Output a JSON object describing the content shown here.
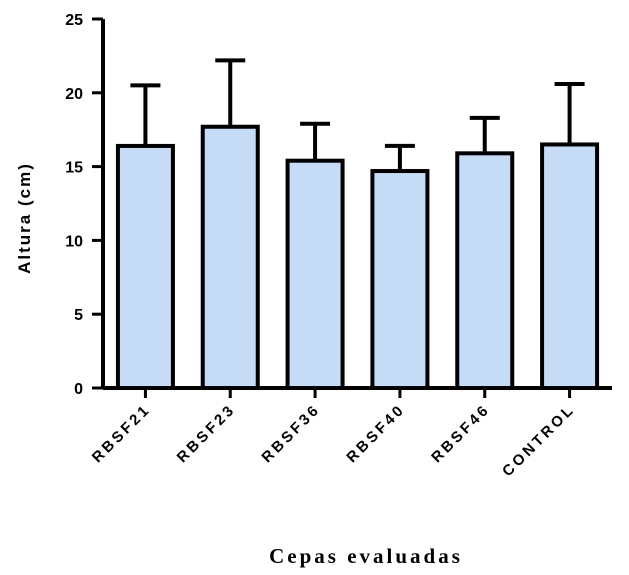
{
  "chart_data": {
    "type": "bar",
    "categories": [
      "RBSF21",
      "RBSF23",
      "RBSF36",
      "RBSF40",
      "RBSF46",
      "CONTROL"
    ],
    "values": [
      16.4,
      17.7,
      15.4,
      14.7,
      15.9,
      16.5
    ],
    "error_upper": [
      20.5,
      22.2,
      17.9,
      16.4,
      18.3,
      20.6
    ],
    "title": "",
    "xlabel": "Cepas evaluadas",
    "ylabel": "Altura (cm)",
    "ylim": [
      0,
      25
    ],
    "yticks": [
      0,
      5,
      10,
      15,
      20,
      25
    ],
    "grid": false,
    "bar_color": "#c6dbf5",
    "edge_color": "#000000"
  }
}
